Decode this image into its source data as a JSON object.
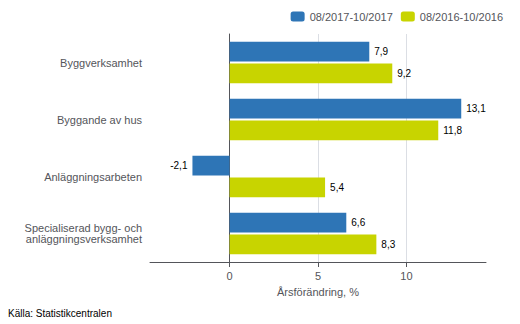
{
  "chart_data": {
    "type": "bar",
    "orientation": "horizontal",
    "categories": [
      "Byggverksamhet",
      "Byggande av hus",
      "Anläggningsarbeten",
      "Specialiserad bygg- och\nanläggningsverksamhet"
    ],
    "series": [
      {
        "name": "08/2017-10/2017",
        "color": "#2E75B6",
        "values": [
          7.9,
          13.1,
          -2.1,
          6.6
        ],
        "value_labels": [
          "7,9",
          "13,1",
          "-2,1",
          "6,6"
        ]
      },
      {
        "name": "08/2016-10/2016",
        "color": "#C8D400",
        "values": [
          9.2,
          11.8,
          5.4,
          8.3
        ],
        "value_labels": [
          "9,2",
          "11,8",
          "5,4",
          "8,3"
        ]
      }
    ],
    "xlabel": "Årsförändring, %",
    "xlim": [
      -4.5,
      14.5
    ],
    "xticks": [
      0,
      5,
      10
    ],
    "grid": true,
    "legend": "upper right",
    "data_labels": true,
    "source": "Källa: Statistikcentralen"
  }
}
